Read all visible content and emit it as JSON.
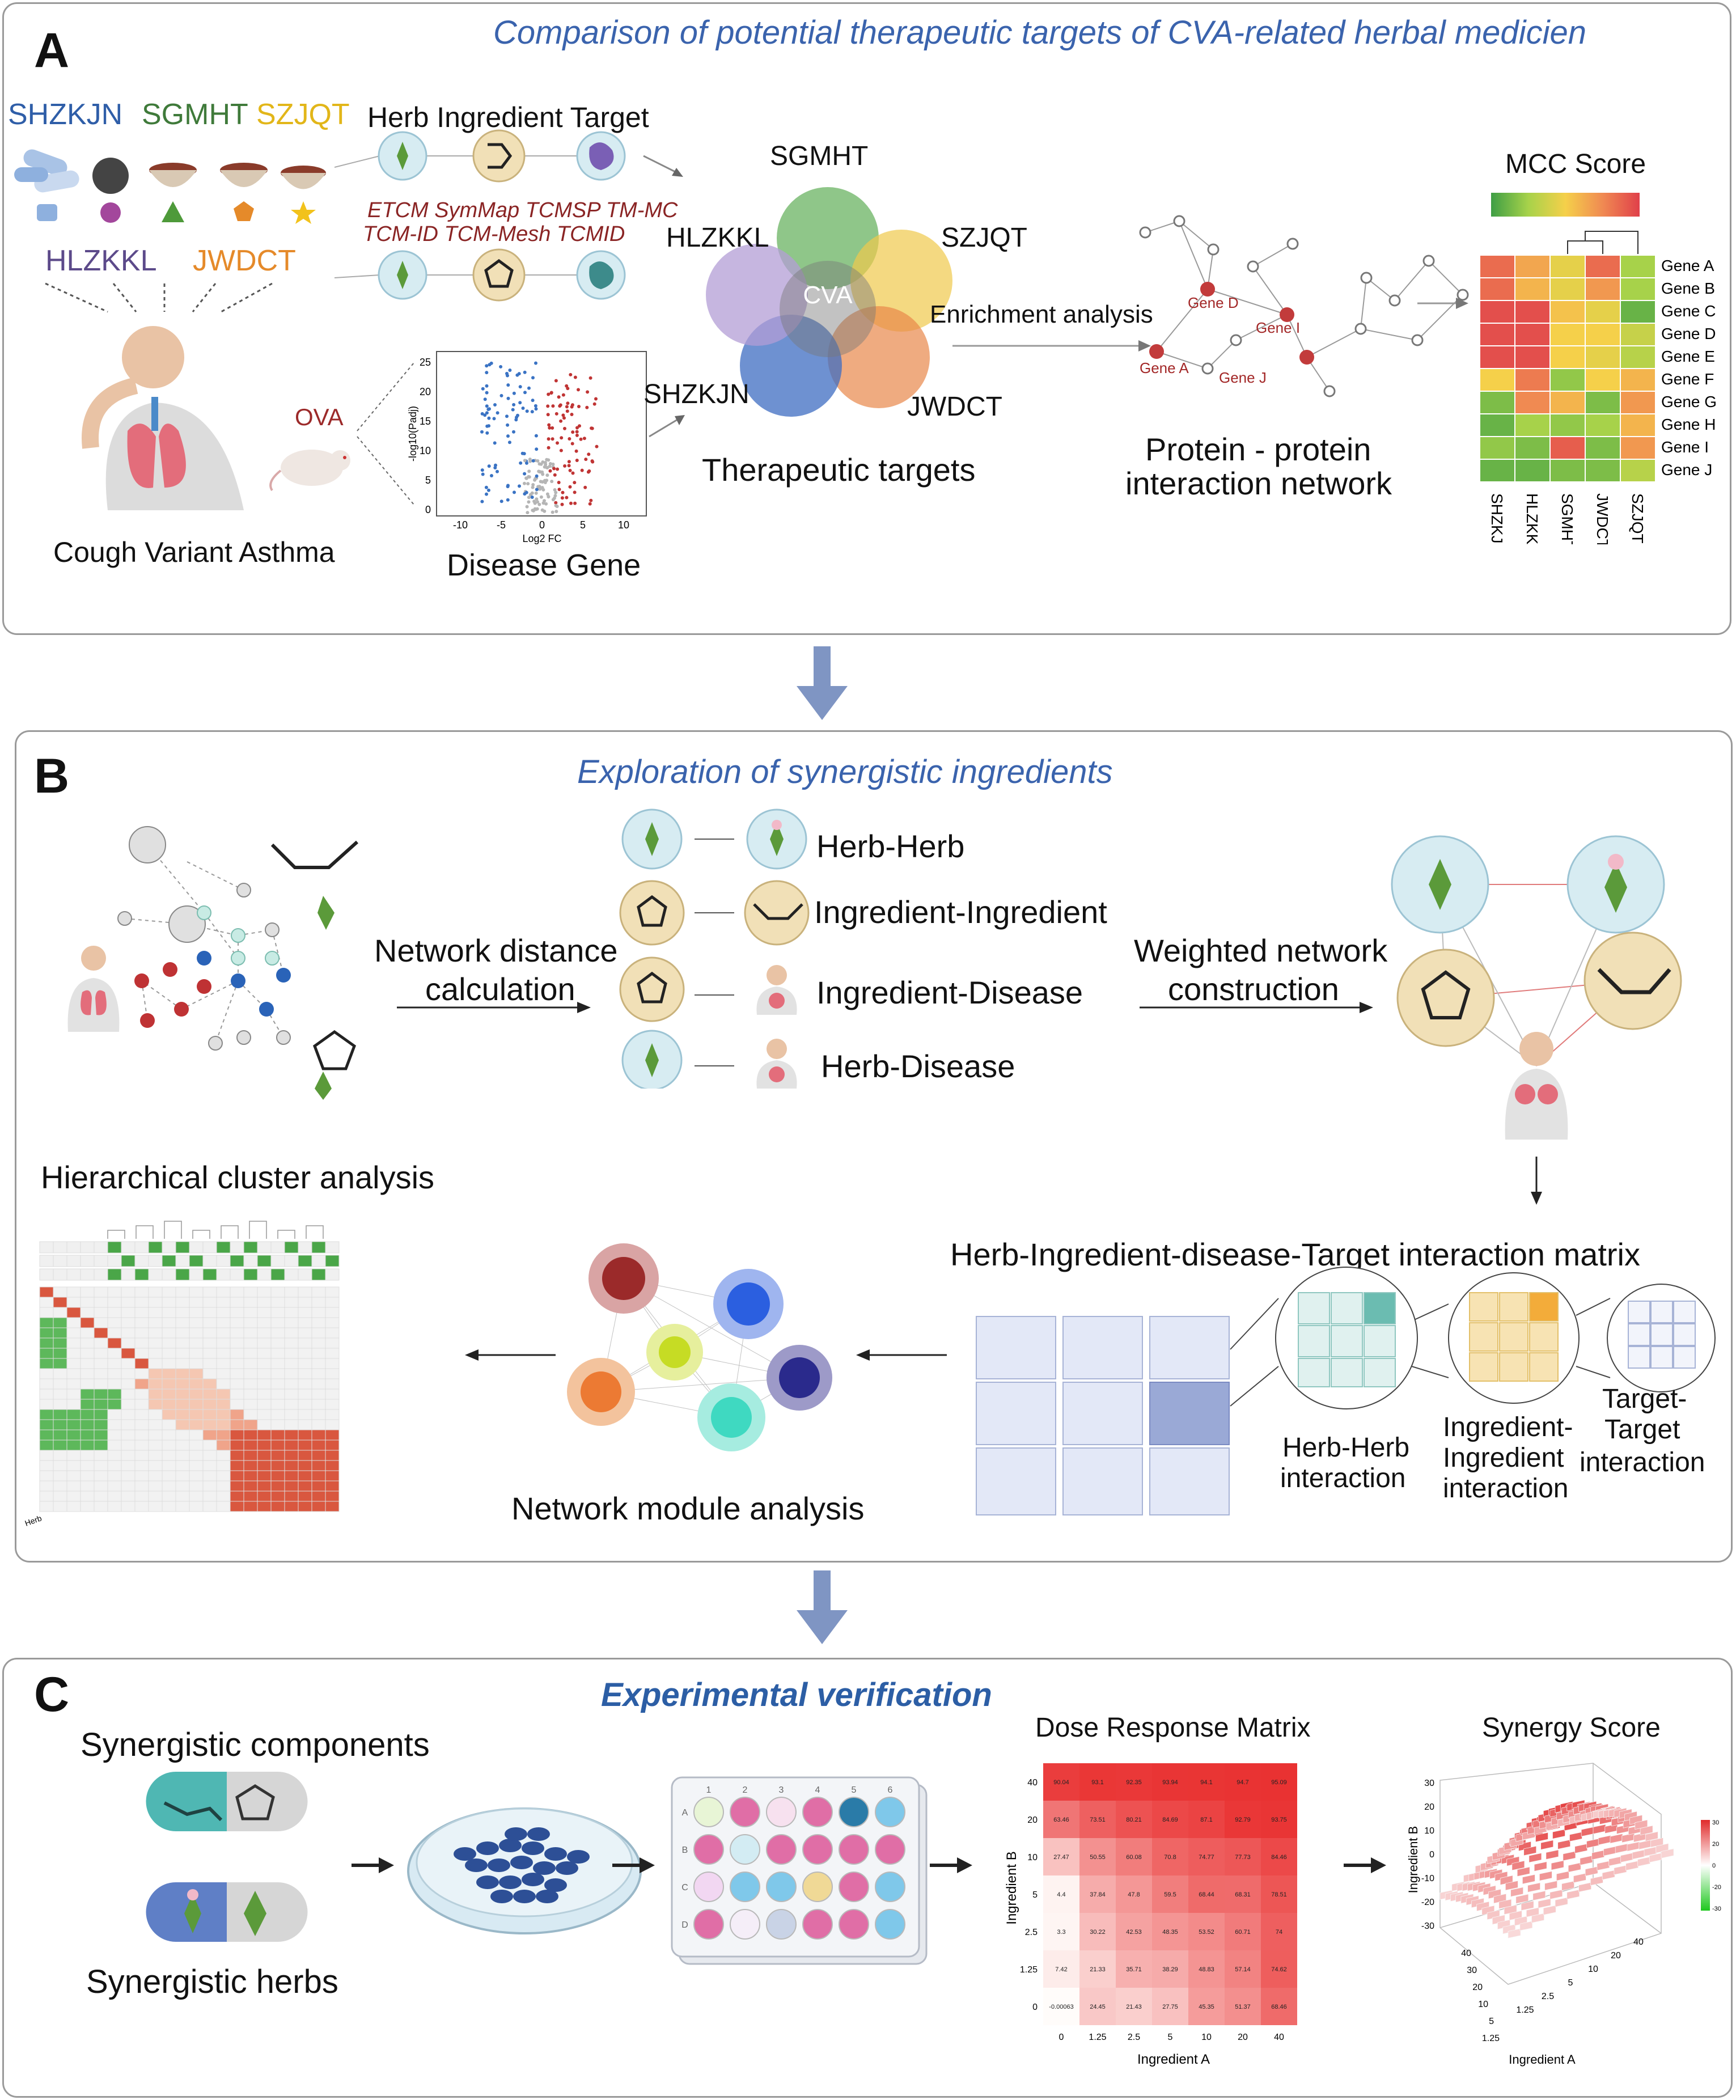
{
  "panelA": {
    "letter": "A",
    "title": "Comparison of potential therapeutic targets of CVA-related  herbal medicien",
    "formulas": [
      "SHZKJN",
      "SGMHT",
      "SZJQT",
      "HLZKKL",
      "JWDCT"
    ],
    "colors": {
      "SHZKJN": "#2f5ea8",
      "SGMHT": "#3f7a3a",
      "SZJQT": "#e2b619",
      "HLZKKL": "#5c4a8a",
      "JWDCT": "#e58a2a"
    },
    "herb_ingredient_target_header": "Herb Ingredient Target",
    "databases_line1": "ETCM SymMap TCMSP TM-MC",
    "databases_line2": "TCM-ID TCM-Mesh TCMID",
    "ova_label": "OVA",
    "cough_label": "Cough Variant Asthma",
    "disease_gene_label": "Disease Gene",
    "volcano": {
      "ylabel": "-log10(Padj)",
      "xlabel": "Log2 FC",
      "yticks": [
        "0",
        "5",
        "10",
        "15",
        "20",
        "25"
      ],
      "xticks": [
        "-10",
        "-5",
        "0",
        "5",
        "10"
      ]
    },
    "venn_center": "CVA",
    "venn_labels": [
      "SGMHT",
      "SZJQT",
      "JWDCT",
      "SHZKJN",
      "HLZKKL"
    ],
    "therapeutic_targets_label": "Therapeutic targets",
    "enrichment_label": "Enrichment analysis",
    "ppi_genes": [
      "Gene D",
      "Gene I",
      "Gene A",
      "Gene J"
    ],
    "ppi_label_line1": "Protein - protein",
    "ppi_label_line2": "interaction network",
    "heatmap_title": "MCC Score",
    "heatmap_rows": [
      "Gene A",
      "Gene B",
      "Gene C",
      "Gene D",
      "Gene E",
      "Gene F",
      "Gene G",
      "Gene H",
      "Gene I",
      "Gene J"
    ],
    "heatmap_cols": [
      "SHZKJN",
      "HLZKKL",
      "SGMHT",
      "JWDCT",
      "SZJQT"
    ],
    "heatmap_values": [
      [
        0.85,
        0.65,
        0.45,
        0.85,
        0.25
      ],
      [
        0.85,
        0.6,
        0.45,
        0.7,
        0.25
      ],
      [
        0.95,
        0.95,
        0.55,
        0.45,
        0.1
      ],
      [
        0.95,
        0.95,
        0.5,
        0.5,
        0.35
      ],
      [
        0.95,
        0.95,
        0.5,
        0.45,
        0.3
      ],
      [
        0.5,
        0.8,
        0.2,
        0.5,
        0.6
      ],
      [
        0.15,
        0.75,
        0.6,
        0.15,
        0.7
      ],
      [
        0.1,
        0.25,
        0.2,
        0.25,
        0.6
      ],
      [
        0.2,
        0.15,
        0.9,
        0.15,
        0.7
      ],
      [
        0.1,
        0.1,
        0.15,
        0.15,
        0.3
      ]
    ]
  },
  "panelB": {
    "letter": "B",
    "title": "Exploration of synergistic ingredients",
    "network_distance_label_line1": "Network distance",
    "network_distance_label_line2": "calculation",
    "pairs": [
      "Herb-Herb",
      "Ingredient-Ingredient",
      "Ingredient-Disease",
      "Herb-Disease"
    ],
    "weighted_label_line1": "Weighted network",
    "weighted_label_line2": "construction",
    "matrix_title": "Herb-Ingredient-disease-Target interaction matrix",
    "herb_herb_label_line1": "Herb-Herb",
    "herb_herb_label_line2": "interaction",
    "ing_ing_label_line1": "Ingredient-",
    "ing_ing_label_line2": "Ingredient",
    "ing_ing_label_line3": "interaction",
    "target_label_line1": "Target-",
    "target_label_line2": "Target",
    "target_label_line3": "interaction",
    "module_label": "Network module analysis",
    "cluster_title": "Hierarchical cluster analysis",
    "cluster_corner_label": "Herb"
  },
  "panelC": {
    "letter": "C",
    "title": "Experimental verification",
    "synergistic_components": "Synergistic components",
    "synergistic_herbs": "Synergistic herbs",
    "plate_cols": [
      "1",
      "2",
      "3",
      "4",
      "5",
      "6"
    ],
    "plate_rows": [
      "A",
      "B",
      "C",
      "D"
    ],
    "dose_title": "Dose Response Matrix",
    "dose_ylabel": "Ingredient B",
    "dose_xlabel": "Ingredient A",
    "dose_xticks": [
      "0",
      "1.25",
      "2.5",
      "5",
      "10",
      "20",
      "40"
    ],
    "dose_yticks": [
      "40",
      "20",
      "10",
      "5",
      "2.5",
      "1.25",
      "0"
    ],
    "dose_values": [
      [
        90.04,
        93.1,
        92.35,
        93.94,
        94.1,
        94.7,
        95.09
      ],
      [
        63.46,
        73.51,
        80.21,
        84.69,
        87.1,
        92.79,
        93.75
      ],
      [
        27.47,
        50.55,
        60.08,
        70.8,
        74.77,
        77.73,
        84.46
      ],
      [
        4.4,
        37.84,
        47.8,
        59.5,
        68.44,
        68.31,
        78.51
      ],
      [
        3.3,
        30.22,
        42.53,
        48.35,
        53.52,
        60.71,
        74
      ],
      [
        7.42,
        21.33,
        35.71,
        38.29,
        48.83,
        57.14,
        74.62
      ],
      [
        -0.00063,
        24.45,
        21.43,
        27.75,
        45.35,
        51.37,
        68.46
      ]
    ],
    "synergy_title": "Synergy Score",
    "synergy_ylabel": "Ingredient B",
    "synergy_xlabel": "Ingredient A",
    "synergy_zticks": [
      "30",
      "20",
      "10",
      "0",
      "-10",
      "-20",
      "-30"
    ],
    "synergy_a_ticks": [
      "1.25",
      "2.5",
      "5",
      "10",
      "20",
      "40"
    ],
    "synergy_b_ticks": [
      "1.25",
      "5",
      "10",
      "20",
      "30",
      "40"
    ],
    "colorbar_ticks": [
      "30",
      "20",
      "0",
      "-20",
      "-30"
    ]
  }
}
